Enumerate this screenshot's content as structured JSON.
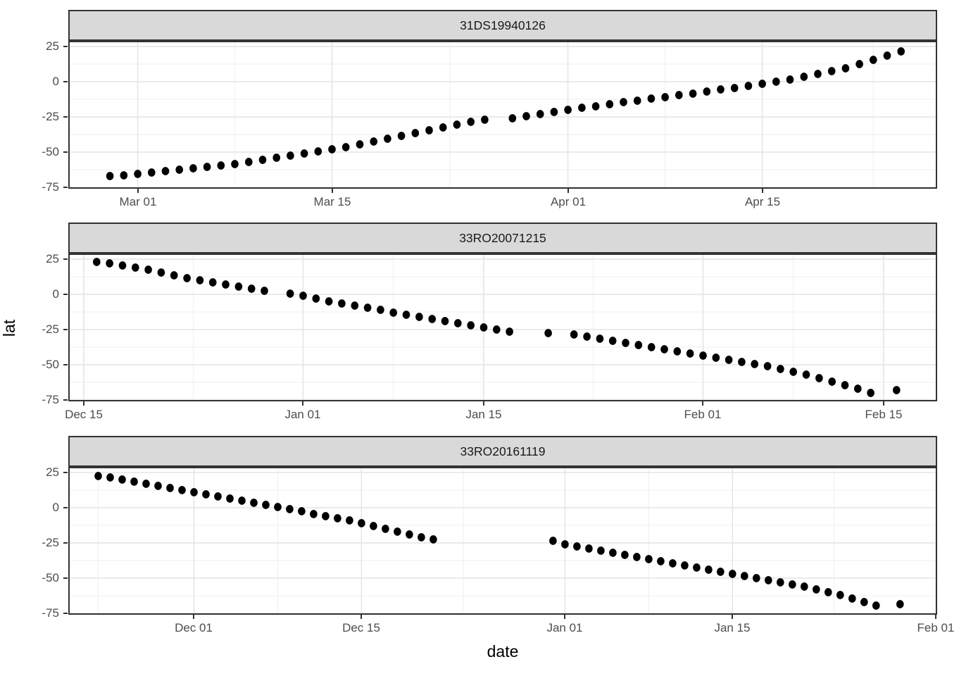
{
  "titles": {
    "x": "date",
    "y": "lat"
  },
  "style": {
    "point_color": "#000000",
    "strip_fill": "#d9d9d9",
    "strip_border": "#333333",
    "panel_border": "#333333",
    "grid_major": "#e4e4e4",
    "grid_minor": "#efefef",
    "axis_text_color": "#4d4d4d",
    "title_color": "#000000"
  },
  "chart_data": [
    {
      "type": "scatter",
      "facet_label": "31DS19940126",
      "xlabel": "date",
      "ylabel": "lat",
      "grid": "on",
      "y_domain": [
        -76,
        29
      ],
      "y_major_ticks": [
        {
          "label": "25",
          "value": 25
        },
        {
          "label": "0",
          "value": 0
        },
        {
          "label": "-25",
          "value": -25
        },
        {
          "label": "-50",
          "value": -50
        },
        {
          "label": "-75",
          "value": -75
        }
      ],
      "y_minor_values": [
        12.5,
        -12.5,
        -37.5,
        -62.5
      ],
      "x_domain_days": [
        -3.0,
        59.6
      ],
      "x_major_ticks": [
        {
          "label": "Mar 01",
          "day": 2
        },
        {
          "label": "Mar 15",
          "day": 16
        },
        {
          "label": "Apr 01",
          "day": 33
        },
        {
          "label": "Apr 15",
          "day": 47
        }
      ],
      "x_minor_days": [
        9,
        24.5,
        40,
        55
      ],
      "points": [
        [
          "Feb 27",
          0,
          -67
        ],
        [
          "Feb 28",
          1,
          -66.5
        ],
        [
          "Mar 01",
          2,
          -65.5
        ],
        [
          "Mar 02",
          3,
          -64.5
        ],
        [
          "Mar 03",
          4,
          -63.5
        ],
        [
          "Mar 04",
          5,
          -62.5
        ],
        [
          "Mar 05",
          6,
          -61.5
        ],
        [
          "Mar 06",
          7,
          -60.5
        ],
        [
          "Mar 07",
          8,
          -59.5
        ],
        [
          "Mar 08",
          9,
          -58.5
        ],
        [
          "Mar 09",
          10,
          -57
        ],
        [
          "Mar 10",
          11,
          -55.5
        ],
        [
          "Mar 11",
          12,
          -54
        ],
        [
          "Mar 12",
          13,
          -52.5
        ],
        [
          "Mar 13",
          14,
          -51
        ],
        [
          "Mar 14",
          15,
          -49.5
        ],
        [
          "Mar 15",
          16,
          -48
        ],
        [
          "Mar 16",
          17,
          -46.5
        ],
        [
          "Mar 17",
          18,
          -44.5
        ],
        [
          "Mar 18",
          19,
          -42.5
        ],
        [
          "Mar 19",
          20,
          -40.5
        ],
        [
          "Mar 20",
          21,
          -38.5
        ],
        [
          "Mar 21",
          22,
          -36.5
        ],
        [
          "Mar 22",
          23,
          -34.5
        ],
        [
          "Mar 23",
          24,
          -32.5
        ],
        [
          "Mar 24",
          25,
          -30.5
        ],
        [
          "Mar 25",
          26,
          -28.5
        ],
        [
          "Mar 26",
          27,
          -27
        ],
        [
          "Mar 28",
          29,
          -26
        ],
        [
          "Mar 29",
          30,
          -24.5
        ],
        [
          "Mar 30",
          31,
          -23
        ],
        [
          "Mar 31",
          32,
          -21.5
        ],
        [
          "Apr 01",
          33,
          -20
        ],
        [
          "Apr 02",
          34,
          -18.5
        ],
        [
          "Apr 03",
          35,
          -17.5
        ],
        [
          "Apr 04",
          36,
          -16
        ],
        [
          "Apr 05",
          37,
          -14.5
        ],
        [
          "Apr 06",
          38,
          -13.5
        ],
        [
          "Apr 07",
          39,
          -12
        ],
        [
          "Apr 08",
          40,
          -11
        ],
        [
          "Apr 09",
          41,
          -9.5
        ],
        [
          "Apr 10",
          42,
          -8.5
        ],
        [
          "Apr 11",
          43,
          -7
        ],
        [
          "Apr 12",
          44,
          -5.5
        ],
        [
          "Apr 13",
          45,
          -4.5
        ],
        [
          "Apr 14",
          46,
          -3
        ],
        [
          "Apr 15",
          47,
          -1.5
        ],
        [
          "Apr 16",
          48,
          0
        ],
        [
          "Apr 17",
          49,
          1.5
        ],
        [
          "Apr 18",
          50,
          3.5
        ],
        [
          "Apr 19",
          51,
          5.5
        ],
        [
          "Apr 20",
          52,
          7.5
        ],
        [
          "Apr 21",
          53,
          9.5
        ],
        [
          "Apr 22",
          54,
          12.5
        ],
        [
          "Apr 23",
          55,
          15.5
        ],
        [
          "Apr 24",
          56,
          18.5
        ],
        [
          "Apr 25",
          57,
          21.5
        ]
      ]
    },
    {
      "type": "scatter",
      "facet_label": "33RO20071215",
      "xlabel": "date",
      "ylabel": "lat",
      "grid": "on",
      "y_domain": [
        -76,
        29
      ],
      "y_major_ticks": [
        {
          "label": "25",
          "value": 25
        },
        {
          "label": "0",
          "value": 0
        },
        {
          "label": "-25",
          "value": -25
        },
        {
          "label": "-50",
          "value": -50
        },
        {
          "label": "-75",
          "value": -75
        }
      ],
      "y_minor_values": [
        12.5,
        -12.5,
        -37.5,
        -62.5
      ],
      "x_domain_days": [
        -2.2,
        65.15
      ],
      "x_major_ticks": [
        {
          "label": "Dec 15",
          "day": -1
        },
        {
          "label": "Jan 01",
          "day": 16
        },
        {
          "label": "Jan 15",
          "day": 30
        },
        {
          "label": "Feb 01",
          "day": 47
        },
        {
          "label": "Feb 15",
          "day": 61
        }
      ],
      "x_minor_days": [
        7.5,
        23,
        38.5,
        54
      ],
      "points": [
        [
          "Dec 16",
          0,
          23
        ],
        [
          "Dec 17",
          1,
          22
        ],
        [
          "Dec 18",
          2,
          20.5
        ],
        [
          "Dec 19",
          3,
          19
        ],
        [
          "Dec 20",
          4,
          17.5
        ],
        [
          "Dec 21",
          5,
          15.5
        ],
        [
          "Dec 22",
          6,
          13.5
        ],
        [
          "Dec 23",
          7,
          11.5
        ],
        [
          "Dec 24",
          8,
          10
        ],
        [
          "Dec 25",
          9,
          8.5
        ],
        [
          "Dec 26",
          10,
          7
        ],
        [
          "Dec 27",
          11,
          5.5
        ],
        [
          "Dec 28",
          12,
          4
        ],
        [
          "Dec 29",
          13,
          2.5
        ],
        [
          "Dec 31",
          15,
          0.5
        ],
        [
          "Jan 01",
          16,
          -1
        ],
        [
          "Jan 02",
          17,
          -3
        ],
        [
          "Jan 03",
          18,
          -5
        ],
        [
          "Jan 04",
          19,
          -6.5
        ],
        [
          "Jan 05",
          20,
          -8
        ],
        [
          "Jan 06",
          21,
          -9.5
        ],
        [
          "Jan 07",
          22,
          -11
        ],
        [
          "Jan 08",
          23,
          -13
        ],
        [
          "Jan 09",
          24,
          -14.5
        ],
        [
          "Jan 10",
          25,
          -16
        ],
        [
          "Jan 11",
          26,
          -17.5
        ],
        [
          "Jan 12",
          27,
          -19
        ],
        [
          "Jan 13",
          28,
          -20.5
        ],
        [
          "Jan 14",
          29,
          -22
        ],
        [
          "Jan 15",
          30,
          -23.5
        ],
        [
          "Jan 16",
          31,
          -25
        ],
        [
          "Jan 17",
          32,
          -26.5
        ],
        [
          "Jan 20",
          35,
          -27.5
        ],
        [
          "Jan 22",
          37,
          -28.5
        ],
        [
          "Jan 23",
          38,
          -30
        ],
        [
          "Jan 24",
          39,
          -31.5
        ],
        [
          "Jan 25",
          40,
          -33
        ],
        [
          "Jan 26",
          41,
          -34.5
        ],
        [
          "Jan 27",
          42,
          -36
        ],
        [
          "Jan 28",
          43,
          -37.5
        ],
        [
          "Jan 29",
          44,
          -39
        ],
        [
          "Jan 30",
          45,
          -40.5
        ],
        [
          "Jan 31",
          46,
          -42
        ],
        [
          "Feb 01",
          47,
          -43.5
        ],
        [
          "Feb 02",
          48,
          -45
        ],
        [
          "Feb 03",
          49,
          -46.5
        ],
        [
          "Feb 04",
          50,
          -48
        ],
        [
          "Feb 05",
          51,
          -49.5
        ],
        [
          "Feb 06",
          52,
          -51
        ],
        [
          "Feb 07",
          53,
          -53
        ],
        [
          "Feb 08",
          54,
          -55
        ],
        [
          "Feb 09",
          55,
          -57
        ],
        [
          "Feb 10",
          56,
          -59.5
        ],
        [
          "Feb 11",
          57,
          -62
        ],
        [
          "Feb 12",
          58,
          -64.5
        ],
        [
          "Feb 13",
          59,
          -67
        ],
        [
          "Feb 14",
          60,
          -70
        ],
        [
          "Feb 16",
          62,
          -68
        ]
      ]
    },
    {
      "type": "scatter",
      "facet_label": "33RO20161119",
      "xlabel": "date",
      "ylabel": "lat",
      "grid": "on",
      "y_domain": [
        -76,
        29
      ],
      "y_major_ticks": [
        {
          "label": "25",
          "value": 25
        },
        {
          "label": "0",
          "value": 0
        },
        {
          "label": "-25",
          "value": -25
        },
        {
          "label": "-50",
          "value": -50
        },
        {
          "label": "-75",
          "value": -75
        }
      ],
      "y_minor_values": [
        12.5,
        -12.5,
        -37.5,
        -62.5
      ],
      "x_domain_days": [
        -2.5,
        70.1
      ],
      "x_major_ticks": [
        {
          "label": "Dec 01",
          "day": 8
        },
        {
          "label": "Dec 15",
          "day": 22
        },
        {
          "label": "Jan 01",
          "day": 39
        },
        {
          "label": "Jan 15",
          "day": 53
        },
        {
          "label": "Feb 01",
          "day": 70
        }
      ],
      "x_minor_days": [
        0,
        15,
        30.5,
        46,
        61.5
      ],
      "points": [
        [
          "Nov 23",
          0,
          22.5
        ],
        [
          "Nov 24",
          1,
          21.5
        ],
        [
          "Nov 25",
          2,
          20
        ],
        [
          "Nov 26",
          3,
          18.5
        ],
        [
          "Nov 27",
          4,
          17
        ],
        [
          "Nov 28",
          5,
          15.5
        ],
        [
          "Nov 29",
          6,
          14
        ],
        [
          "Nov 30",
          7,
          12.5
        ],
        [
          "Dec 01",
          8,
          11
        ],
        [
          "Dec 02",
          9,
          9.5
        ],
        [
          "Dec 03",
          10,
          8
        ],
        [
          "Dec 04",
          11,
          6.5
        ],
        [
          "Dec 05",
          12,
          5
        ],
        [
          "Dec 06",
          13,
          3.5
        ],
        [
          "Dec 07",
          14,
          2
        ],
        [
          "Dec 08",
          15,
          0.5
        ],
        [
          "Dec 09",
          16,
          -1
        ],
        [
          "Dec 10",
          17,
          -2.5
        ],
        [
          "Dec 11",
          18,
          -4.5
        ],
        [
          "Dec 12",
          19,
          -6
        ],
        [
          "Dec 13",
          20,
          -7.5
        ],
        [
          "Dec 14",
          21,
          -9
        ],
        [
          "Dec 15",
          22,
          -11
        ],
        [
          "Dec 16",
          23,
          -13
        ],
        [
          "Dec 17",
          24,
          -15
        ],
        [
          "Dec 18",
          25,
          -17
        ],
        [
          "Dec 19",
          26,
          -19
        ],
        [
          "Dec 20",
          27,
          -21
        ],
        [
          "Dec 21",
          28,
          -22.5
        ],
        [
          "Dec 31",
          38,
          -23.5
        ],
        [
          "Jan 01",
          39,
          -26
        ],
        [
          "Jan 02",
          40,
          -27.5
        ],
        [
          "Jan 03",
          41,
          -29
        ],
        [
          "Jan 04",
          42,
          -30.5
        ],
        [
          "Jan 05",
          43,
          -32
        ],
        [
          "Jan 06",
          44,
          -33.5
        ],
        [
          "Jan 07",
          45,
          -35
        ],
        [
          "Jan 08",
          46,
          -36.5
        ],
        [
          "Jan 09",
          47,
          -38
        ],
        [
          "Jan 10",
          48,
          -39.5
        ],
        [
          "Jan 11",
          49,
          -41
        ],
        [
          "Jan 12",
          50,
          -42.5
        ],
        [
          "Jan 13",
          51,
          -44
        ],
        [
          "Jan 14",
          52,
          -45.5
        ],
        [
          "Jan 15",
          53,
          -47
        ],
        [
          "Jan 16",
          54,
          -48.5
        ],
        [
          "Jan 17",
          55,
          -50
        ],
        [
          "Jan 18",
          56,
          -51.5
        ],
        [
          "Jan 19",
          57,
          -53
        ],
        [
          "Jan 20",
          58,
          -54.5
        ],
        [
          "Jan 21",
          59,
          -56
        ],
        [
          "Jan 22",
          60,
          -58
        ],
        [
          "Jan 23",
          61,
          -60
        ],
        [
          "Jan 24",
          62,
          -62
        ],
        [
          "Jan 25",
          63,
          -64.5
        ],
        [
          "Jan 26",
          64,
          -67
        ],
        [
          "Jan 27",
          65,
          -69.5
        ],
        [
          "Jan 29",
          67,
          -68.5
        ]
      ]
    }
  ]
}
